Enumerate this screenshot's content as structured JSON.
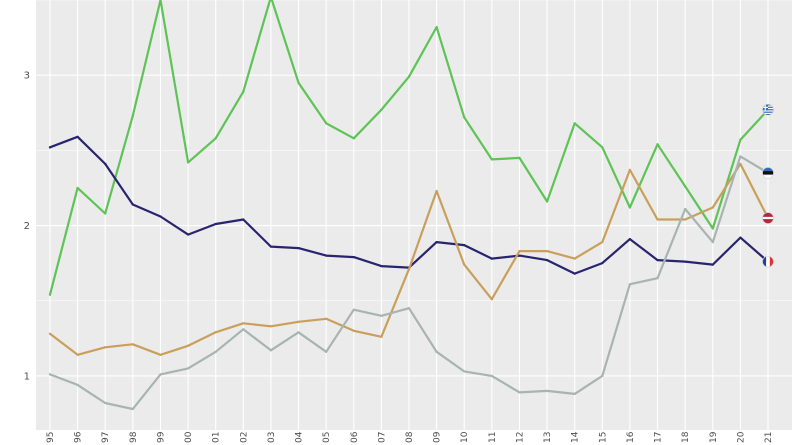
{
  "chart_data": {
    "type": "line",
    "title": "",
    "xlabel": "",
    "ylabel": "",
    "x": [
      "95",
      "96",
      "97",
      "98",
      "99",
      "00",
      "01",
      "02",
      "03",
      "04",
      "05",
      "06",
      "07",
      "08",
      "09",
      "10",
      "11",
      "12",
      "13",
      "14",
      "15",
      "16",
      "17",
      "18",
      "19",
      "20",
      "21"
    ],
    "ylim": [
      0.7,
      3.5
    ],
    "yticks": [
      {
        "value": 1,
        "label": "1"
      },
      {
        "value": 2,
        "label": "2"
      },
      {
        "value": 3,
        "label": "3"
      }
    ],
    "grid": true,
    "legend": "flag icons at line ends (right)",
    "series": [
      {
        "color": "#5dc455",
        "flag": "greece-flag-icon",
        "values": [
          1.54,
          2.25,
          2.08,
          2.73,
          3.5,
          2.42,
          2.58,
          2.89,
          3.52,
          2.95,
          2.68,
          2.58,
          2.77,
          2.99,
          3.32,
          2.72,
          2.44,
          2.45,
          2.16,
          2.68,
          2.52,
          2.12,
          2.54,
          2.26,
          1.98,
          2.57,
          2.77
        ]
      },
      {
        "color": "#28246e",
        "flag": "france-flag-icon",
        "values": [
          2.52,
          2.59,
          2.41,
          2.14,
          2.06,
          1.94,
          2.01,
          2.04,
          1.86,
          1.85,
          1.8,
          1.79,
          1.73,
          1.72,
          1.89,
          1.87,
          1.78,
          1.8,
          1.77,
          1.68,
          1.75,
          1.91,
          1.77,
          1.76,
          1.74,
          1.92,
          1.76
        ]
      },
      {
        "color": "#c9a05b",
        "flag": "latvia-flag-icon",
        "values": [
          1.28,
          1.14,
          1.19,
          1.21,
          1.14,
          1.2,
          1.29,
          1.35,
          1.33,
          1.36,
          1.38,
          1.3,
          1.26,
          1.71,
          2.23,
          1.74,
          1.51,
          1.83,
          1.83,
          1.78,
          1.89,
          2.37,
          2.04,
          2.04,
          2.12,
          2.41,
          2.05
        ]
      },
      {
        "color": "#a8b4b2",
        "flag": "estonia-flag-icon",
        "values": [
          1.01,
          0.94,
          0.82,
          0.78,
          1.01,
          1.05,
          1.16,
          1.31,
          1.17,
          1.29,
          1.16,
          1.44,
          1.4,
          1.45,
          1.16,
          1.03,
          1.0,
          0.89,
          0.9,
          0.88,
          1.0,
          1.61,
          1.65,
          2.11,
          1.89,
          2.46,
          2.35
        ]
      }
    ]
  }
}
